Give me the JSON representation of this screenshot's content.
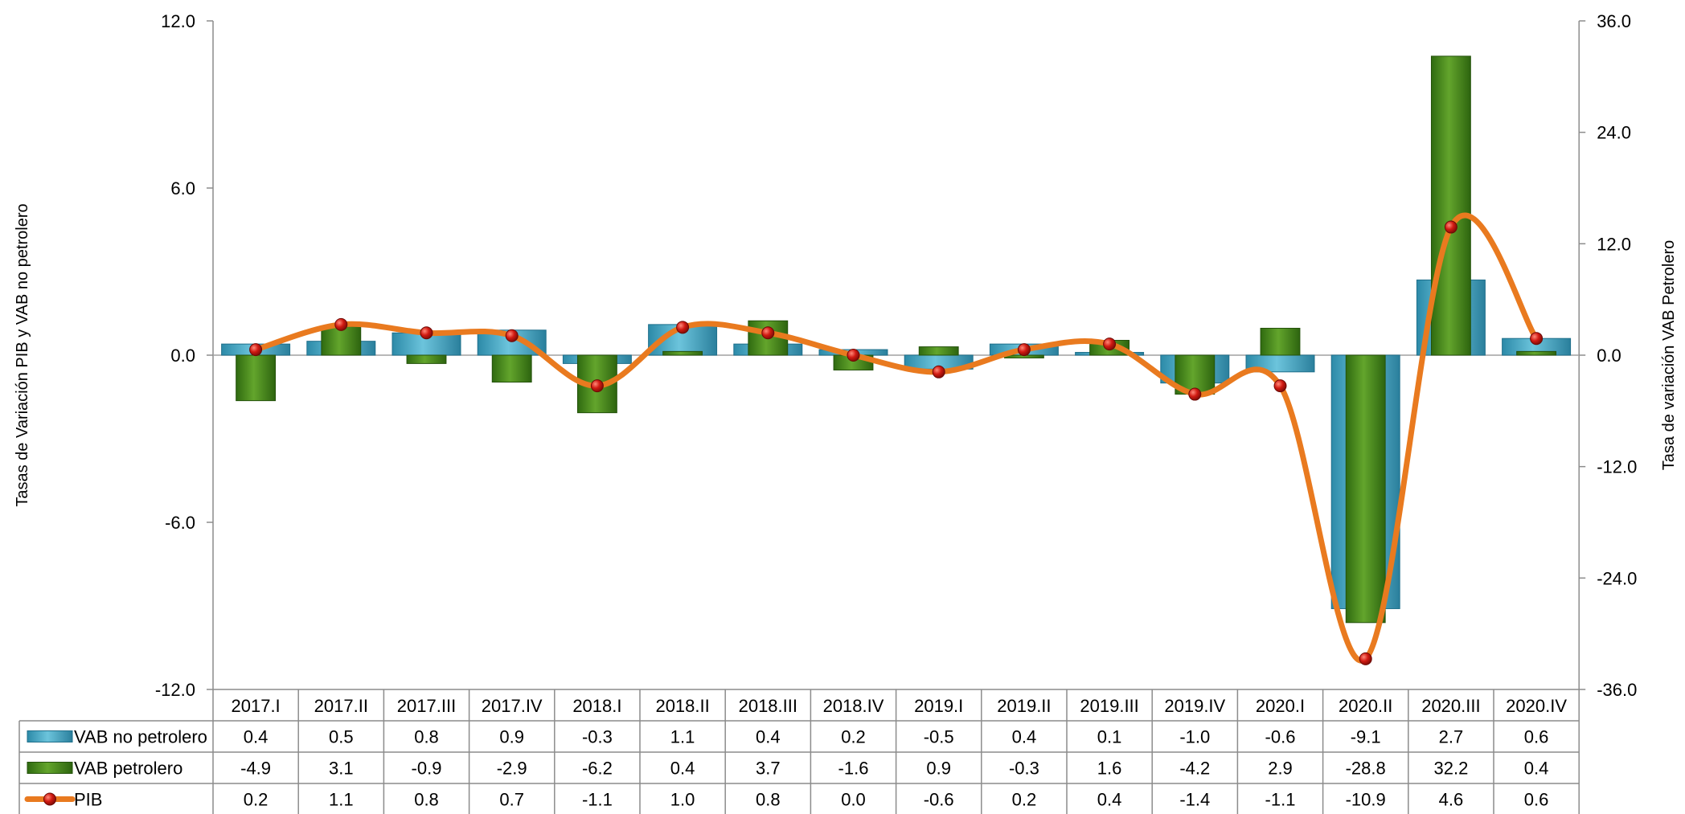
{
  "chart_data": {
    "type": "bar",
    "categories": [
      "2017.I",
      "2017.II",
      "2017.III",
      "2017.IV",
      "2018.I",
      "2018.II",
      "2018.III",
      "2018.IV",
      "2019.I",
      "2019.II",
      "2019.III",
      "2019.IV",
      "2020.I",
      "2020.II",
      "2020.III",
      "2020.IV"
    ],
    "series": [
      {
        "name": "VAB no petrolero",
        "type": "bar",
        "axis": "left",
        "color": "#3fa3c0",
        "values": [
          0.4,
          0.5,
          0.8,
          0.9,
          -0.3,
          1.1,
          0.4,
          0.2,
          -0.5,
          0.4,
          0.1,
          -1.0,
          -0.6,
          -9.1,
          2.7,
          0.6
        ],
        "labels": [
          "0.4",
          "0.5",
          "0.8",
          "0.9",
          "-0.3",
          "1.1",
          "0.4",
          "0.2",
          "-0.5",
          "0.4",
          "0.1",
          "-1.0",
          "-0.6",
          "-9.1",
          "2.7",
          "0.6"
        ]
      },
      {
        "name": "VAB petrolero",
        "type": "bar",
        "axis": "right",
        "color": "#4a8a1e",
        "values": [
          -4.9,
          3.1,
          -0.9,
          -2.9,
          -6.2,
          0.4,
          3.7,
          -1.6,
          0.9,
          -0.3,
          1.6,
          -4.2,
          2.9,
          -28.8,
          32.2,
          0.4
        ],
        "labels": [
          "-4.9",
          "3.1",
          "-0.9",
          "-2.9",
          "-6.2",
          "0.4",
          "3.7",
          "-1.6",
          "0.9",
          "-0.3",
          "1.6",
          "-4.2",
          "2.9",
          "-28.8",
          "32.2",
          "0.4"
        ]
      },
      {
        "name": "PIB",
        "type": "line",
        "axis": "left",
        "color": "#e97a1f",
        "marker_color": "#cc1b14",
        "values": [
          0.2,
          1.1,
          0.8,
          0.7,
          -1.1,
          1.0,
          0.8,
          0.0,
          -0.6,
          0.2,
          0.4,
          -1.4,
          -1.1,
          -10.9,
          4.6,
          0.6
        ],
        "labels": [
          "0.2",
          "1.1",
          "0.8",
          "0.7",
          "-1.1",
          "1.0",
          "0.8",
          "0.0",
          "-0.6",
          "0.2",
          "0.4",
          "-1.4",
          "-1.1",
          "-10.9",
          "4.6",
          "0.6"
        ]
      }
    ],
    "y_left": {
      "label": "Tasas de Variación PIB y VAB no petrolero",
      "min": -12,
      "max": 12,
      "ticks": [
        12,
        6,
        0,
        -6,
        -12
      ],
      "tick_labels": [
        "12.0",
        "6.0",
        "0.0",
        "-6.0",
        "-12.0"
      ]
    },
    "y_right": {
      "label": "Tasa de variación VAB Petrolero",
      "min": -36,
      "max": 36,
      "ticks": [
        36,
        24,
        12,
        0,
        -12,
        -24,
        -36
      ],
      "tick_labels": [
        "36.0",
        "24.0",
        "12.0",
        "0.0",
        "-12.0",
        "-24.0",
        "-36.0"
      ]
    },
    "data_table": true,
    "grid": false
  }
}
